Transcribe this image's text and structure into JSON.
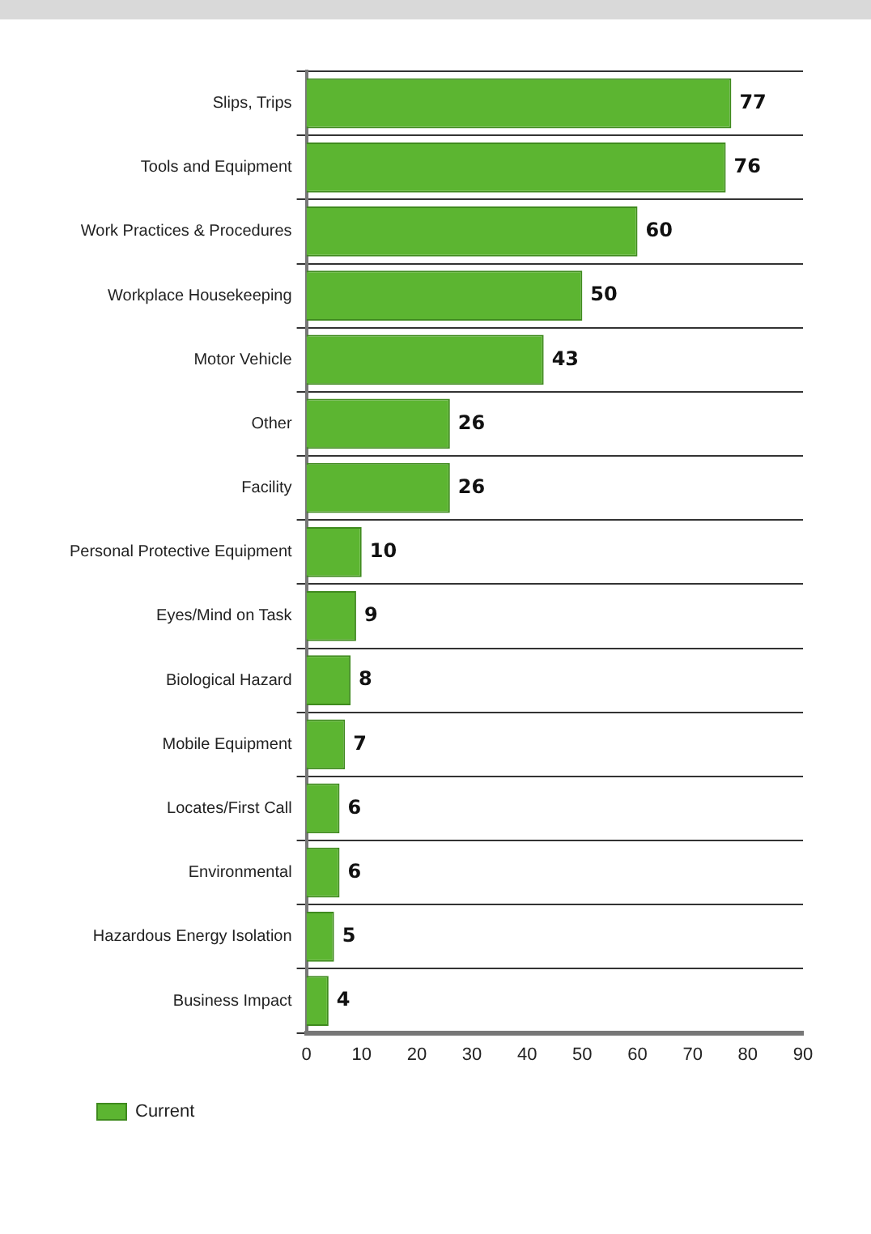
{
  "chart_data": {
    "type": "bar",
    "orientation": "horizontal",
    "categories": [
      "Slips, Trips",
      "Tools and Equipment",
      "Work Practices & Procedures",
      "Workplace Housekeeping",
      "Motor Vehicle",
      "Other",
      "Facility",
      "Personal Protective Equipment",
      "Eyes/Mind on Task",
      "Biological Hazard",
      "Mobile Equipment",
      "Locates/First Call",
      "Environmental",
      "Hazardous Energy Isolation",
      "Business Impact"
    ],
    "series": [
      {
        "name": "Current",
        "color": "#5cb531",
        "values": [
          77,
          76,
          60,
          50,
          43,
          26,
          26,
          10,
          9,
          8,
          7,
          6,
          6,
          5,
          4
        ]
      }
    ],
    "xlim": [
      0,
      90
    ],
    "xticks": [
      0,
      10,
      20,
      30,
      40,
      50,
      60,
      70,
      80,
      90
    ],
    "data_labels": true,
    "grid": "y",
    "legend": "bottom left"
  }
}
